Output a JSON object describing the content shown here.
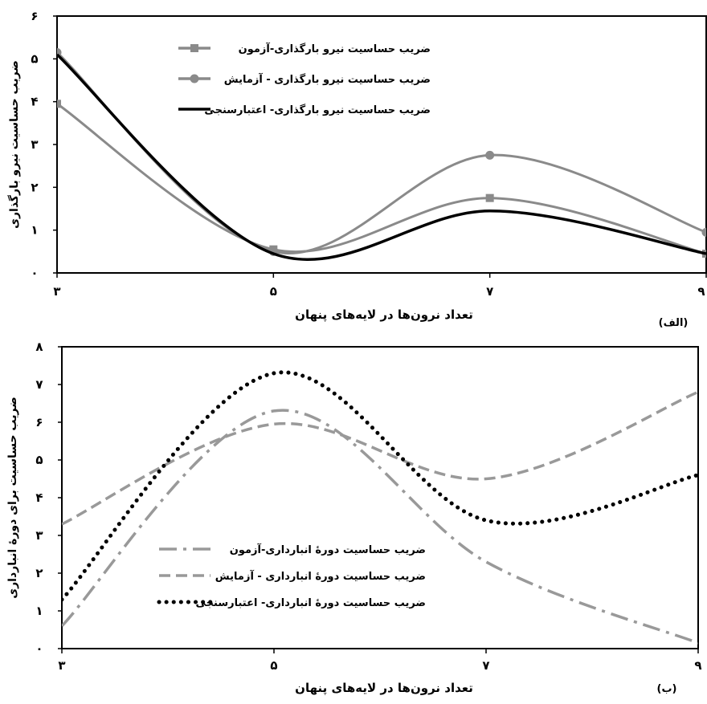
{
  "chart_data": [
    {
      "type": "line",
      "panel_label": "(الف)",
      "xlabel": "تعداد نرون‌ها در لایه‌های پنهان",
      "ylabel": "ضریب حساسیت نیرو بارگذاری",
      "x": [
        3,
        5,
        7,
        9
      ],
      "x_tick_labels": [
        "۳",
        "۵",
        "۷",
        "۹"
      ],
      "y_tick_labels": [
        "۰",
        "۱",
        "۲",
        "۳",
        "۴",
        "۵",
        "۶"
      ],
      "xlim": [
        3,
        9
      ],
      "ylim": [
        0,
        6
      ],
      "legend_position": "top-center",
      "series": [
        {
          "name": "ضریب حساسیت نیرو بارگذاری-آزمون",
          "values": [
            3.95,
            0.55,
            1.75,
            0.45
          ],
          "color": "#8a8a8a",
          "marker": "square",
          "dash": "solid"
        },
        {
          "name": "ضریب حساسیت نیرو بارگذاری - آزمایش",
          "values": [
            5.15,
            0.5,
            2.75,
            0.95
          ],
          "color": "#8a8a8a",
          "marker": "circle",
          "dash": "solid"
        },
        {
          "name": "ضریب حساسیت نیرو بارگذاری- اعتبارسنجی",
          "values": [
            5.1,
            0.45,
            1.45,
            0.45
          ],
          "color": "#000000",
          "marker": "none",
          "dash": "solid"
        }
      ]
    },
    {
      "type": "line",
      "panel_label": "(ب)",
      "xlabel": "تعداد نرون‌ها در لایه‌های پنهان",
      "ylabel": "ضریب حساسیت برای دورهٔ انبارداری",
      "x": [
        3,
        5,
        7,
        9
      ],
      "x_tick_labels": [
        "۳",
        "۵",
        "۷",
        "۹"
      ],
      "y_tick_labels": [
        "۰",
        "۱",
        "۲",
        "۳",
        "۴",
        "۵",
        "۶",
        "۷",
        "۸"
      ],
      "xlim": [
        3,
        9
      ],
      "ylim": [
        0,
        8
      ],
      "legend_position": "bottom-left",
      "series": [
        {
          "name": "ضریب حساسیت دورهٔ انبارداری-آزمون",
          "values": [
            0.6,
            6.3,
            2.3,
            0.15
          ],
          "color": "#999999",
          "marker": "none",
          "dash": "dashdot"
        },
        {
          "name": "ضریب حساسیت دورهٔ انبارداری - آزمایش",
          "values": [
            3.3,
            5.95,
            4.5,
            6.8
          ],
          "color": "#999999",
          "marker": "none",
          "dash": "dash"
        },
        {
          "name": "ضریب حساسیت دورهٔ انبارداری- اعتبارسنجی",
          "values": [
            1.3,
            7.3,
            3.4,
            4.6
          ],
          "color": "#000000",
          "marker": "none",
          "dash": "dot"
        }
      ]
    }
  ]
}
